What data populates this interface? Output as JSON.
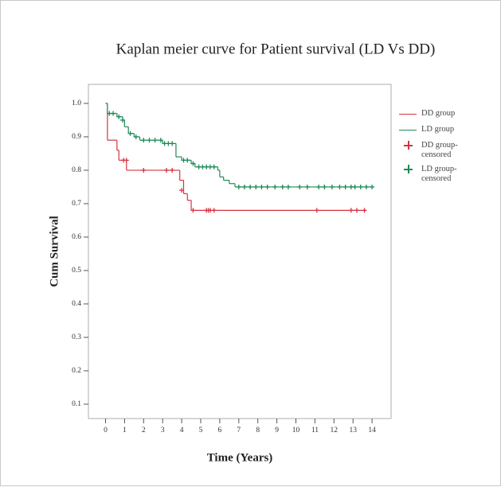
{
  "chart_data": {
    "type": "kaplan-meier",
    "title": "Kaplan meier curve for Patient survival (LD Vs DD)",
    "x_label": "Time (Years)",
    "y_label": "Cum Survival",
    "xlim": [
      -0.9,
      15
    ],
    "ylim": [
      0.057,
      1.057
    ],
    "xticks": [
      0,
      1,
      2,
      3,
      4,
      5,
      6,
      7,
      8,
      9,
      10,
      11,
      12,
      13,
      14
    ],
    "yticks": [
      0.1,
      0.2,
      0.3,
      0.4,
      0.5,
      0.6,
      0.7,
      0.8,
      0.9,
      {
        "value": 1,
        "label": "1.0"
      }
    ],
    "series": [
      {
        "name": "DD group",
        "color": "#d4343f",
        "kind": "step",
        "x": [
          0,
          0.1,
          0.6,
          0.7,
          1.1,
          3.9,
          4.1,
          4.3,
          4.5,
          13.7
        ],
        "values": [
          1,
          0.89,
          0.86,
          0.83,
          0.8,
          0.77,
          0.73,
          0.71,
          0.68,
          0.68
        ]
      },
      {
        "name": "LD group",
        "color": "#1f8a57",
        "kind": "step",
        "x": [
          0,
          0.1,
          0.6,
          0.9,
          1.0,
          1.2,
          1.5,
          1.8,
          3.0,
          3.7,
          4.0,
          4.5,
          4.7,
          5.9,
          6.0,
          6.2,
          6.5,
          6.8,
          14.0
        ],
        "values": [
          1,
          0.97,
          0.96,
          0.95,
          0.93,
          0.91,
          0.9,
          0.89,
          0.88,
          0.84,
          0.83,
          0.82,
          0.81,
          0.8,
          0.78,
          0.77,
          0.76,
          0.75,
          0.75
        ]
      },
      {
        "name": "DD group-censored",
        "color": "#d4343f",
        "kind": "censored",
        "x": [
          0.95,
          1.1,
          2.0,
          3.2,
          3.5,
          4.0,
          4.6,
          5.3,
          5.4,
          5.5,
          5.7,
          11.1,
          12.9,
          13.2,
          13.6
        ],
        "values": [
          0.83,
          0.83,
          0.8,
          0.8,
          0.8,
          0.74,
          0.68,
          0.68,
          0.68,
          0.68,
          0.68,
          0.68,
          0.68,
          0.68,
          0.68
        ]
      },
      {
        "name": "LD group-censored",
        "color": "#1f8a57",
        "kind": "censored",
        "x": [
          0.2,
          0.4,
          0.7,
          0.9,
          1.3,
          1.6,
          2.0,
          2.3,
          2.6,
          2.9,
          3.1,
          3.3,
          3.5,
          4.1,
          4.3,
          4.6,
          4.9,
          5.1,
          5.3,
          5.5,
          5.7,
          7.0,
          7.3,
          7.6,
          7.9,
          8.2,
          8.5,
          8.9,
          9.3,
          9.6,
          10.2,
          10.6,
          11.2,
          11.5,
          11.9,
          12.3,
          12.6,
          12.9,
          13.1,
          13.4,
          13.7,
          14.0
        ],
        "values": [
          0.97,
          0.97,
          0.96,
          0.95,
          0.91,
          0.9,
          0.89,
          0.89,
          0.89,
          0.89,
          0.88,
          0.88,
          0.88,
          0.83,
          0.83,
          0.82,
          0.81,
          0.81,
          0.81,
          0.81,
          0.81,
          0.75,
          0.75,
          0.75,
          0.75,
          0.75,
          0.75,
          0.75,
          0.75,
          0.75,
          0.75,
          0.75,
          0.75,
          0.75,
          0.75,
          0.75,
          0.75,
          0.75,
          0.75,
          0.75,
          0.75,
          0.75
        ]
      }
    ]
  }
}
